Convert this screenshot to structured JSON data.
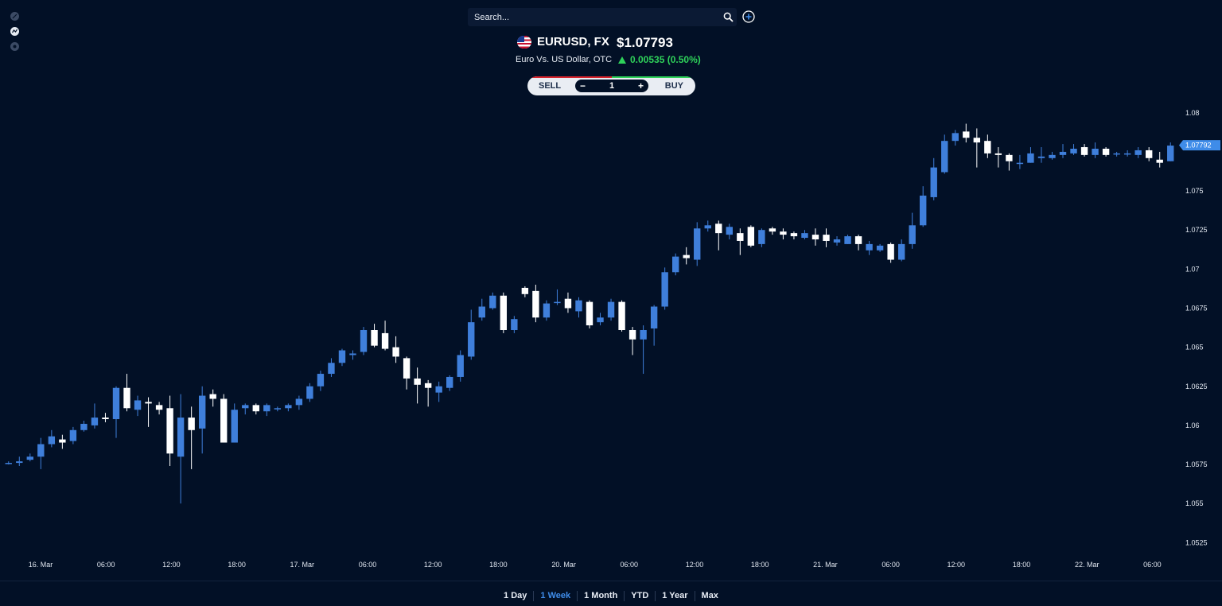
{
  "search": {
    "placeholder": "Search..."
  },
  "header": {
    "symbol": "EURUSD, FX",
    "price": "$1.07793",
    "name": "Euro Vs. US Dollar, OTC",
    "change": "0.00535 (0.50%)"
  },
  "trade": {
    "sell_label": "SELL",
    "buy_label": "BUY",
    "minus": "−",
    "plus": "+",
    "quantity": "1"
  },
  "ranges": [
    {
      "label": "1 Day",
      "active": false
    },
    {
      "label": "1 Week",
      "active": true
    },
    {
      "label": "1 Month",
      "active": false
    },
    {
      "label": "YTD",
      "active": false
    },
    {
      "label": "1 Year",
      "active": false
    },
    {
      "label": "Max",
      "active": false
    }
  ],
  "colors": {
    "background": "#021026",
    "up": "#3f7fdb",
    "down": "#ffffff",
    "positive": "#2fd25a"
  },
  "chart_data": {
    "type": "candlestick",
    "y_ticks": [
      "1.08",
      "1.075",
      "1.0725",
      "1.07",
      "1.0675",
      "1.065",
      "1.0625",
      "1.06",
      "1.0575",
      "1.055",
      "1.0525"
    ],
    "y_tick_values": [
      1.08,
      1.075,
      1.0725,
      1.07,
      1.0675,
      1.065,
      1.0625,
      1.06,
      1.0575,
      1.055,
      1.0525
    ],
    "ylim": [
      1.0516,
      1.0806
    ],
    "x_ticks": [
      "16. Mar",
      "06:00",
      "12:00",
      "18:00",
      "17. Mar",
      "06:00",
      "12:00",
      "18:00",
      "20. Mar",
      "06:00",
      "12:00",
      "18:00",
      "21. Mar",
      "06:00",
      "12:00",
      "18:00",
      "22. Mar",
      "06:00"
    ],
    "current_price_label": "1.07792",
    "current_price": 1.07792,
    "candles": [
      [
        1.0576,
        1.0576,
        1.0577,
        1.0575
      ],
      [
        1.0576,
        1.0577,
        1.058,
        1.0574
      ],
      [
        1.0578,
        1.058,
        1.0582,
        1.0577
      ],
      [
        1.058,
        1.0588,
        1.0592,
        1.0572
      ],
      [
        1.0588,
        1.0593,
        1.0597,
        1.0586
      ],
      [
        1.0591,
        1.0589,
        1.0594,
        1.0585
      ],
      [
        1.059,
        1.0597,
        1.0599,
        1.0588
      ],
      [
        1.0597,
        1.0601,
        1.0603,
        1.0596
      ],
      [
        1.06,
        1.0605,
        1.0614,
        1.0598
      ],
      [
        1.0605,
        1.0604,
        1.0608,
        1.0602
      ],
      [
        1.0604,
        1.0624,
        1.0625,
        1.0592
      ],
      [
        1.0624,
        1.0611,
        1.0633,
        1.0609
      ],
      [
        1.061,
        1.0616,
        1.0619,
        1.0606
      ],
      [
        1.0615,
        1.0614,
        1.0618,
        1.0599
      ],
      [
        1.0613,
        1.061,
        1.0615,
        1.0607
      ],
      [
        1.0611,
        1.0582,
        1.0619,
        1.0574
      ],
      [
        1.058,
        1.0605,
        1.062,
        1.055
      ],
      [
        1.0605,
        1.0597,
        1.0612,
        1.0572
      ],
      [
        1.0598,
        1.0619,
        1.0625,
        1.0582
      ],
      [
        1.062,
        1.0617,
        1.0623,
        1.0612
      ],
      [
        1.0617,
        1.0589,
        1.062,
        1.0589
      ],
      [
        1.0589,
        1.061,
        1.0614,
        1.0589
      ],
      [
        1.0611,
        1.0613,
        1.0614,
        1.0607
      ],
      [
        1.0613,
        1.0609,
        1.0614,
        1.0607
      ],
      [
        1.0609,
        1.0613,
        1.0614,
        1.0606
      ],
      [
        1.0611,
        1.0611,
        1.0612,
        1.0609
      ],
      [
        1.0611,
        1.0613,
        1.0614,
        1.0609
      ],
      [
        1.0613,
        1.0617,
        1.0619,
        1.061
      ],
      [
        1.0617,
        1.0625,
        1.0627,
        1.0615
      ],
      [
        1.0625,
        1.0633,
        1.0635,
        1.0622
      ],
      [
        1.0633,
        1.064,
        1.0643,
        1.0631
      ],
      [
        1.064,
        1.0648,
        1.0649,
        1.0638
      ],
      [
        1.0645,
        1.0646,
        1.0648,
        1.0642
      ],
      [
        1.0647,
        1.0661,
        1.0663,
        1.0645
      ],
      [
        1.0661,
        1.0651,
        1.0665,
        1.065
      ],
      [
        1.0659,
        1.0649,
        1.0667,
        1.0648
      ],
      [
        1.065,
        1.0644,
        1.0657,
        1.064
      ],
      [
        1.0643,
        1.063,
        1.0644,
        1.0623
      ],
      [
        1.063,
        1.0626,
        1.0637,
        1.0614
      ],
      [
        1.0627,
        1.0624,
        1.0629,
        1.0612
      ],
      [
        1.0621,
        1.0625,
        1.0628,
        1.0615
      ],
      [
        1.0624,
        1.0631,
        1.0632,
        1.0622
      ],
      [
        1.0631,
        1.0645,
        1.0648,
        1.0628
      ],
      [
        1.0644,
        1.0666,
        1.0674,
        1.0642
      ],
      [
        1.0669,
        1.0676,
        1.0681,
        1.0667
      ],
      [
        1.0675,
        1.0683,
        1.0685,
        1.0674
      ],
      [
        1.0683,
        1.0661,
        1.0685,
        1.0659
      ],
      [
        1.0661,
        1.0668,
        1.067,
        1.0659
      ],
      [
        1.0688,
        1.0684,
        1.0689,
        1.0682
      ],
      [
        1.0686,
        1.0669,
        1.069,
        1.0666
      ],
      [
        1.0669,
        1.0678,
        1.068,
        1.0667
      ],
      [
        1.0679,
        1.0679,
        1.0687,
        1.0677
      ],
      [
        1.0681,
        1.0675,
        1.0685,
        1.0672
      ],
      [
        1.0673,
        1.068,
        1.0682,
        1.0669
      ],
      [
        1.0679,
        1.0664,
        1.068,
        1.0662
      ],
      [
        1.0666,
        1.0669,
        1.0672,
        1.0664
      ],
      [
        1.0669,
        1.0679,
        1.0681,
        1.0667
      ],
      [
        1.0679,
        1.0661,
        1.068,
        1.066
      ],
      [
        1.0661,
        1.0655,
        1.0663,
        1.0645
      ],
      [
        1.0655,
        1.0661,
        1.0664,
        1.0633
      ],
      [
        1.0662,
        1.0676,
        1.0677,
        1.0651
      ],
      [
        1.0676,
        1.0698,
        1.0701,
        1.0674
      ],
      [
        1.0698,
        1.0708,
        1.071,
        1.0696
      ],
      [
        1.0709,
        1.0707,
        1.0714,
        1.0703
      ],
      [
        1.0706,
        1.0726,
        1.073,
        1.0702
      ],
      [
        1.0726,
        1.0728,
        1.0731,
        1.0724
      ],
      [
        1.0729,
        1.0723,
        1.0731,
        1.0712
      ],
      [
        1.0722,
        1.0727,
        1.0729,
        1.0719
      ],
      [
        1.0723,
        1.0718,
        1.0726,
        1.0709
      ],
      [
        1.0727,
        1.0715,
        1.0728,
        1.0714
      ],
      [
        1.0716,
        1.0725,
        1.0726,
        1.0714
      ],
      [
        1.0726,
        1.0724,
        1.0727,
        1.0722
      ],
      [
        1.0724,
        1.0722,
        1.0726,
        1.0719
      ],
      [
        1.0723,
        1.0721,
        1.0724,
        1.0719
      ],
      [
        1.072,
        1.0723,
        1.0725,
        1.0719
      ],
      [
        1.0722,
        1.0719,
        1.0726,
        1.0715
      ],
      [
        1.0722,
        1.0718,
        1.0726,
        1.0714
      ],
      [
        1.0717,
        1.0719,
        1.0721,
        1.0715
      ],
      [
        1.0716,
        1.0721,
        1.0722,
        1.0716
      ],
      [
        1.0721,
        1.0716,
        1.0722,
        1.0712
      ],
      [
        1.0712,
        1.0716,
        1.0718,
        1.0709
      ],
      [
        1.0712,
        1.0715,
        1.0716,
        1.0711
      ],
      [
        1.0716,
        1.0706,
        1.0717,
        1.0704
      ],
      [
        1.0706,
        1.0716,
        1.0719,
        1.0705
      ],
      [
        1.0716,
        1.0728,
        1.0736,
        1.0713
      ],
      [
        1.0728,
        1.0747,
        1.0753,
        1.0727
      ],
      [
        1.0746,
        1.0765,
        1.0771,
        1.0744
      ],
      [
        1.0762,
        1.0782,
        1.0786,
        1.0761
      ],
      [
        1.0782,
        1.0787,
        1.0789,
        1.0779
      ],
      [
        1.0788,
        1.0784,
        1.0793,
        1.0781
      ],
      [
        1.0784,
        1.0781,
        1.079,
        1.0765
      ],
      [
        1.0782,
        1.0774,
        1.0786,
        1.0771
      ],
      [
        1.0774,
        1.0773,
        1.0778,
        1.0765
      ],
      [
        1.0773,
        1.0769,
        1.0774,
        1.0763
      ],
      [
        1.0768,
        1.0768,
        1.0773,
        1.0764
      ],
      [
        1.0768,
        1.0774,
        1.0778,
        1.0768
      ],
      [
        1.0771,
        1.0772,
        1.0778,
        1.0768
      ],
      [
        1.0771,
        1.0773,
        1.0775,
        1.077
      ],
      [
        1.0773,
        1.0775,
        1.078,
        1.0771
      ],
      [
        1.0774,
        1.0777,
        1.078,
        1.0773
      ],
      [
        1.0778,
        1.0773,
        1.078,
        1.0772
      ],
      [
        1.0773,
        1.0777,
        1.0781,
        1.0771
      ],
      [
        1.0777,
        1.0773,
        1.0778,
        1.0772
      ],
      [
        1.0774,
        1.0774,
        1.0775,
        1.0772
      ],
      [
        1.0774,
        1.0774,
        1.0776,
        1.0772
      ],
      [
        1.0773,
        1.0776,
        1.0778,
        1.0771
      ],
      [
        1.0776,
        1.0771,
        1.0778,
        1.0769
      ],
      [
        1.077,
        1.0768,
        1.0775,
        1.0765
      ],
      [
        1.0769,
        1.0779,
        1.0781,
        1.0769
      ]
    ]
  }
}
